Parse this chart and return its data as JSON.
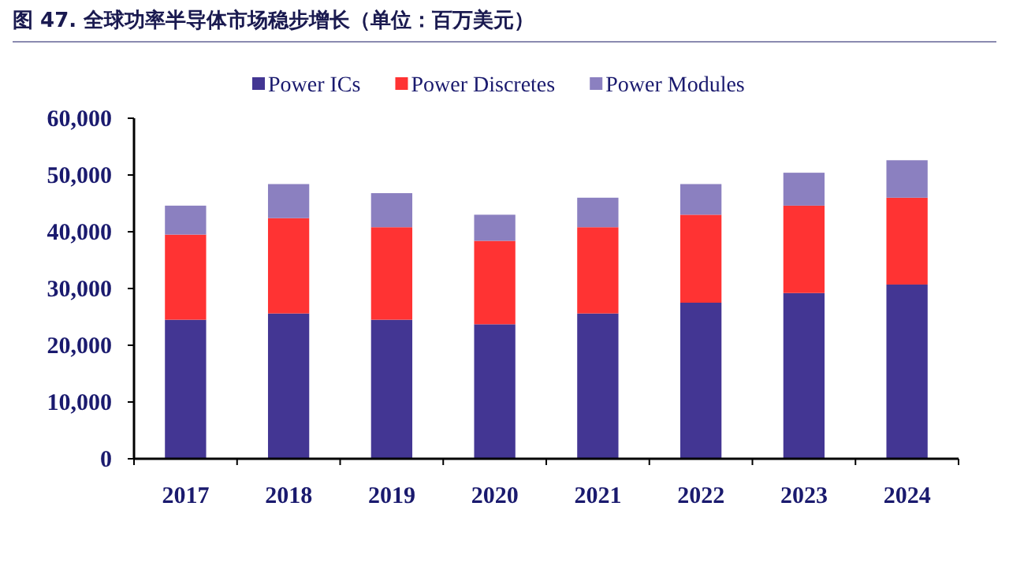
{
  "chart_data": {
    "type": "bar",
    "stacked": true,
    "title": "图 47. 全球功率半导体市场稳步增长（单位：百万美元）",
    "categories": [
      "2017",
      "2018",
      "2019",
      "2020",
      "2021",
      "2022",
      "2023",
      "2024"
    ],
    "series": [
      {
        "name": "Power ICs",
        "color": "#433693",
        "values": [
          24500,
          25600,
          24500,
          23700,
          25600,
          27500,
          29200,
          30700
        ]
      },
      {
        "name": "Power Discretes",
        "color": "#ff3333",
        "values": [
          15000,
          16800,
          16300,
          14700,
          15200,
          15500,
          15400,
          15300
        ]
      },
      {
        "name": "Power Modules",
        "color": "#8b80c0",
        "values": [
          5100,
          6000,
          6000,
          4600,
          5200,
          5400,
          5800,
          6600
        ]
      }
    ],
    "ylim": [
      0,
      60000
    ],
    "yticks": [
      {
        "value": 0,
        "label": "0"
      },
      {
        "value": 10000,
        "label": "10,000"
      },
      {
        "value": 20000,
        "label": "20,000"
      },
      {
        "value": 30000,
        "label": "30,000"
      },
      {
        "value": 40000,
        "label": "40,000"
      },
      {
        "value": 50000,
        "label": "50,000"
      },
      {
        "value": 60000,
        "label": "60,000"
      }
    ],
    "grid": false,
    "legend": "top"
  }
}
